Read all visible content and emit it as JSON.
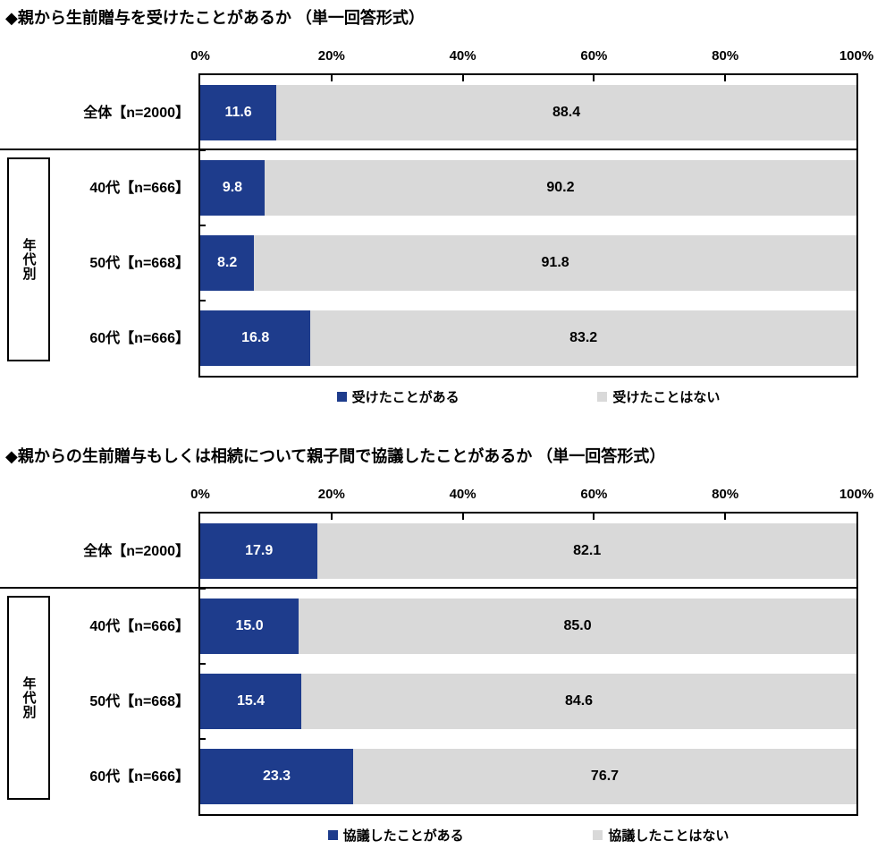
{
  "colors": {
    "yes": "#1E3C8C",
    "no": "#D9D9D9",
    "text": "#000000",
    "background": "#FFFFFF"
  },
  "charts": [
    {
      "title": "◆親から生前贈与を受けたことがあるか （単一回答形式）",
      "axis_ticks": [
        "0%",
        "20%",
        "40%",
        "60%",
        "80%",
        "100%"
      ],
      "group_label": "年代別",
      "rows": [
        {
          "label": "全体【n=2000】",
          "yes": "11.6",
          "no": "88.4"
        },
        {
          "label": "40代【n=666】",
          "yes": "9.8",
          "no": "90.2"
        },
        {
          "label": "50代【n=668】",
          "yes": "8.2",
          "no": "91.8"
        },
        {
          "label": "60代【n=666】",
          "yes": "16.8",
          "no": "83.2"
        }
      ],
      "legend": [
        {
          "label": "受けたことがある",
          "color": "#1E3C8C"
        },
        {
          "label": "受けたことはない",
          "color": "#D9D9D9"
        }
      ]
    },
    {
      "title": "◆親からの生前贈与もしくは相続について親子間で協議したことがあるか （単一回答形式）",
      "axis_ticks": [
        "0%",
        "20%",
        "40%",
        "60%",
        "80%",
        "100%"
      ],
      "group_label": "年代別",
      "rows": [
        {
          "label": "全体【n=2000】",
          "yes": "17.9",
          "no": "82.1"
        },
        {
          "label": "40代【n=666】",
          "yes": "15.0",
          "no": "85.0"
        },
        {
          "label": "50代【n=668】",
          "yes": "15.4",
          "no": "84.6"
        },
        {
          "label": "60代【n=666】",
          "yes": "23.3",
          "no": "76.7"
        }
      ],
      "legend": [
        {
          "label": "協議したことがある",
          "color": "#1E3C8C"
        },
        {
          "label": "協議したことはない",
          "color": "#D9D9D9"
        }
      ]
    }
  ],
  "chart_data": [
    {
      "type": "bar",
      "orientation": "horizontal",
      "stacked": true,
      "title": "◆親から生前贈与を受けたことがあるか （単一回答形式）",
      "categories": [
        "全体【n=2000】",
        "40代【n=666】",
        "50代【n=668】",
        "60代【n=666】"
      ],
      "group_label": "年代別",
      "grouped_categories": [
        "40代【n=666】",
        "50代【n=668】",
        "60代【n=666】"
      ],
      "series": [
        {
          "name": "受けたことがある",
          "values": [
            11.6,
            9.8,
            8.2,
            16.8
          ],
          "color": "#1E3C8C"
        },
        {
          "name": "受けたことはない",
          "values": [
            88.4,
            90.2,
            91.8,
            83.2
          ],
          "color": "#D9D9D9"
        }
      ],
      "xlim": [
        0,
        100
      ],
      "x_ticks": [
        "0%",
        "20%",
        "40%",
        "60%",
        "80%",
        "100%"
      ],
      "data_labels": true,
      "grid": false,
      "legend_position": "bottom"
    },
    {
      "type": "bar",
      "orientation": "horizontal",
      "stacked": true,
      "title": "◆親からの生前贈与もしくは相続について親子間で協議したことがあるか （単一回答形式）",
      "categories": [
        "全体【n=2000】",
        "40代【n=666】",
        "50代【n=668】",
        "60代【n=666】"
      ],
      "group_label": "年代別",
      "grouped_categories": [
        "40代【n=666】",
        "50代【n=668】",
        "60代【n=666】"
      ],
      "series": [
        {
          "name": "協議したことがある",
          "values": [
            17.9,
            15.0,
            15.4,
            23.3
          ],
          "color": "#1E3C8C"
        },
        {
          "name": "協議したことはない",
          "values": [
            82.1,
            85.0,
            84.6,
            76.7
          ],
          "color": "#D9D9D9"
        }
      ],
      "xlim": [
        0,
        100
      ],
      "x_ticks": [
        "0%",
        "20%",
        "40%",
        "60%",
        "80%",
        "100%"
      ],
      "data_labels": true,
      "grid": false,
      "legend_position": "bottom"
    }
  ]
}
